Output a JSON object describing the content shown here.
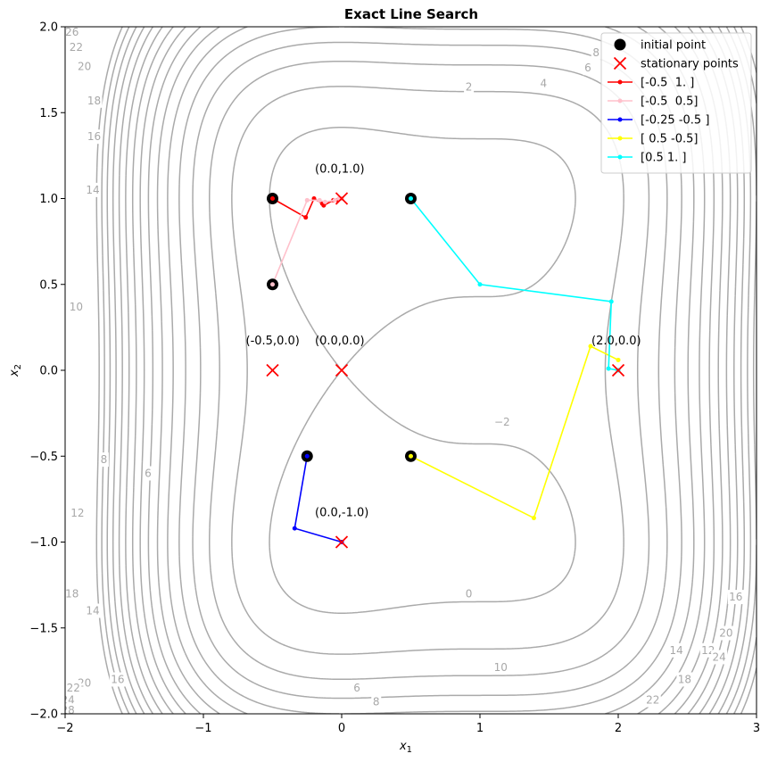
{
  "chart_data": {
    "type": "line",
    "title": "Exact Line Search",
    "xlabel": "x",
    "xlabel_sub": "1",
    "ylabel": "x",
    "ylabel_sub": "2",
    "xlim": [
      -2,
      3
    ],
    "ylim": [
      -2,
      2
    ],
    "xticks": [
      -2,
      -1,
      0,
      1,
      2,
      3
    ],
    "xtick_labels": [
      "−2",
      "−1",
      "0",
      "1",
      "2",
      "3"
    ],
    "yticks": [
      -2.0,
      -1.5,
      -1.0,
      -0.5,
      0.0,
      0.5,
      1.0,
      1.5,
      2.0
    ],
    "ytick_labels": [
      "−2.0",
      "−1.5",
      "−1.0",
      "−0.5",
      "0.0",
      "0.5",
      "1.0",
      "1.5",
      "2.0"
    ],
    "grid": false,
    "legend_position": "top-right",
    "contour_colors": "#aaaaaa",
    "contour_levels": [
      -2,
      0,
      2,
      4,
      6,
      8,
      10,
      12,
      14,
      16,
      18,
      20,
      22,
      24,
      26,
      28,
      30
    ],
    "contour_labels": [
      {
        "x": 0.92,
        "y": -1.3,
        "text": "0"
      },
      {
        "x": 0.92,
        "y": 1.65,
        "text": "2"
      },
      {
        "x": 1.46,
        "y": 1.67,
        "text": "4"
      },
      {
        "x": 1.78,
        "y": 1.76,
        "text": "6"
      },
      {
        "x": 1.84,
        "y": 1.85,
        "text": "8"
      },
      {
        "x": 1.15,
        "y": -1.73,
        "text": "10"
      },
      {
        "x": 2.65,
        "y": -1.63,
        "text": "12"
      },
      {
        "x": 2.42,
        "y": -1.63,
        "text": "14"
      },
      {
        "x": 2.85,
        "y": -1.32,
        "text": "16"
      },
      {
        "x": 2.48,
        "y": -1.8,
        "text": "18"
      },
      {
        "x": 2.78,
        "y": -1.53,
        "text": "20"
      },
      {
        "x": 2.25,
        "y": -1.92,
        "text": "22"
      },
      {
        "x": 2.73,
        "y": -1.67,
        "text": "24"
      },
      {
        "x": 0.11,
        "y": -1.85,
        "text": "6"
      },
      {
        "x": 0.25,
        "y": -1.93,
        "text": "8"
      },
      {
        "x": 1.16,
        "y": -0.3,
        "text": "−2"
      },
      {
        "x": -1.92,
        "y": 0.37,
        "text": "10"
      },
      {
        "x": -1.72,
        "y": -0.52,
        "text": "8"
      },
      {
        "x": -1.4,
        "y": -0.6,
        "text": "6"
      },
      {
        "x": -1.91,
        "y": -0.83,
        "text": "12"
      },
      {
        "x": -1.8,
        "y": 1.05,
        "text": "14"
      },
      {
        "x": -1.79,
        "y": 1.36,
        "text": "16"
      },
      {
        "x": -1.79,
        "y": 1.57,
        "text": "18"
      },
      {
        "x": -1.95,
        "y": -1.3,
        "text": "18"
      },
      {
        "x": -1.8,
        "y": -1.4,
        "text": "14"
      },
      {
        "x": -1.62,
        "y": -1.8,
        "text": "16"
      },
      {
        "x": -1.86,
        "y": -1.82,
        "text": "20"
      },
      {
        "x": -1.94,
        "y": -1.85,
        "text": "22"
      },
      {
        "x": -1.98,
        "y": -1.92,
        "text": "24"
      },
      {
        "x": -1.98,
        "y": -1.98,
        "text": "28"
      },
      {
        "x": -1.86,
        "y": 1.77,
        "text": "20"
      },
      {
        "x": -1.92,
        "y": 1.88,
        "text": "22"
      },
      {
        "x": -1.95,
        "y": 1.97,
        "text": "26"
      }
    ],
    "initial_points": {
      "name": "initial point",
      "color": "#000000",
      "x": [
        -0.5,
        -0.5,
        0.5,
        -0.25,
        0.5
      ],
      "y": [
        1.0,
        0.5,
        1.0,
        -0.5,
        -0.5
      ]
    },
    "stationary_points": {
      "name": "stationary points",
      "color": "#ff0000",
      "x": [
        0.0,
        -0.5,
        0.0,
        2.0,
        0.0
      ],
      "y": [
        1.0,
        0.0,
        0.0,
        0.0,
        -1.0
      ]
    },
    "annotations": [
      {
        "x": 0.0,
        "y": 1.0,
        "text": "(0.0,1.0)"
      },
      {
        "x": -0.5,
        "y": 0.0,
        "text": "(-0.5,0.0)"
      },
      {
        "x": 0.0,
        "y": 0.0,
        "text": "(0.0,0.0)"
      },
      {
        "x": 2.0,
        "y": 0.0,
        "text": "(2.0,0.0)"
      },
      {
        "x": 0.0,
        "y": -1.0,
        "text": "(0.0,-1.0)"
      }
    ],
    "series": [
      {
        "name": "[-0.5  1. ]",
        "color": "#ff0000",
        "x": [
          -0.5,
          -0.26,
          -0.2,
          -0.14,
          -0.13,
          -0.06,
          -0.03,
          0.0
        ],
        "y": [
          1.0,
          0.89,
          1.0,
          0.97,
          0.96,
          0.99,
          0.99,
          1.0
        ]
      },
      {
        "name": "[-0.5  0.5]",
        "color": "#ffc0cb",
        "x": [
          -0.5,
          -0.25,
          -0.16,
          -0.12,
          -0.05,
          -0.02,
          0.0
        ],
        "y": [
          0.5,
          0.99,
          0.99,
          0.98,
          0.99,
          1.0,
          1.0
        ]
      },
      {
        "name": "[-0.25 -0.5 ]",
        "color": "#0000ff",
        "x": [
          -0.25,
          -0.34,
          0.0
        ],
        "y": [
          -0.5,
          -0.92,
          -1.0
        ]
      },
      {
        "name": "[ 0.5 -0.5]",
        "color": "#ffff00",
        "x": [
          0.5,
          1.39,
          1.8,
          2.0
        ],
        "y": [
          -0.5,
          -0.86,
          0.14,
          0.06
        ]
      },
      {
        "name": "[0.5 1. ]",
        "color": "#00ffff",
        "x": [
          0.5,
          1.0,
          1.95,
          1.93,
          2.0
        ],
        "y": [
          1.0,
          0.5,
          0.4,
          0.01,
          0.0
        ]
      }
    ]
  }
}
